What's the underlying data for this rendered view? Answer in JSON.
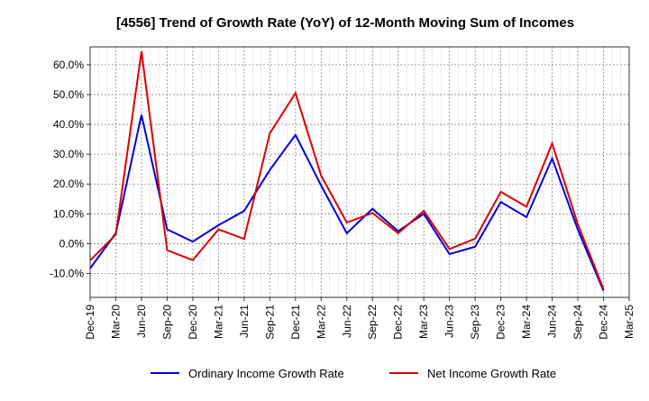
{
  "chart_data": {
    "type": "line",
    "title": "[4556]  Trend of Growth Rate (YoY) of 12-Month Moving Sum of Incomes",
    "xlabel": "",
    "ylabel": "",
    "categories": [
      "Dec-19",
      "Mar-20",
      "Jun-20",
      "Sep-20",
      "Dec-20",
      "Mar-21",
      "Jun-21",
      "Sep-21",
      "Dec-21",
      "Mar-22",
      "Jun-22",
      "Sep-22",
      "Dec-22",
      "Mar-23",
      "Jun-23",
      "Sep-23",
      "Dec-23",
      "Mar-24",
      "Jun-24",
      "Sep-24",
      "Dec-24",
      "Mar-25"
    ],
    "ylim": [
      -18,
      66
    ],
    "y_ticks": [
      -10,
      0,
      10,
      20,
      30,
      40,
      50,
      60
    ],
    "y_tick_labels": [
      "-10.0%",
      "0.0%",
      "10.0%",
      "20.0%",
      "30.0%",
      "40.0%",
      "50.0%",
      "60.0%"
    ],
    "grid": true,
    "legend_position": "bottom",
    "series": [
      {
        "name": "Ordinary Income Growth Rate",
        "color": "#0000dd",
        "values": [
          -8.3,
          3.5,
          43.2,
          4.8,
          0.7,
          6.2,
          11.0,
          24.7,
          36.5,
          19.5,
          3.5,
          11.7,
          4.2,
          10.0,
          -3.5,
          -1.0,
          14.0,
          8.9,
          28.6,
          4.7,
          -15.8,
          null
        ]
      },
      {
        "name": "Net Income Growth Rate",
        "color": "#dd0000",
        "values": [
          -5.6,
          3.0,
          64.5,
          -2.2,
          -5.5,
          4.8,
          1.6,
          37.0,
          50.5,
          22.8,
          7.1,
          10.3,
          3.5,
          11.0,
          -1.8,
          1.7,
          17.4,
          12.4,
          33.6,
          6.5,
          -15.2,
          null
        ]
      }
    ]
  }
}
